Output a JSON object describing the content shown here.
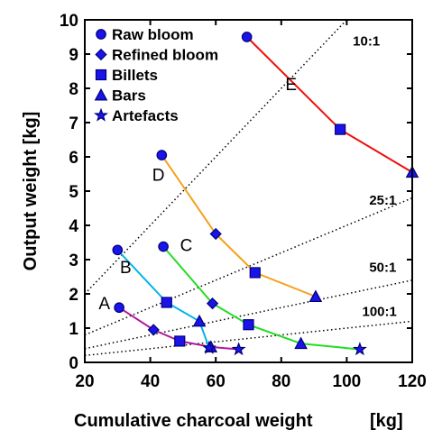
{
  "chart_data": {
    "type": "line",
    "xlabel": "Cumulative charcoal weight",
    "xunit": "[kg]",
    "ylabel": "Output weight [kg]",
    "xlim": [
      20,
      120
    ],
    "ylim": [
      0,
      10
    ],
    "xticks": [
      20,
      40,
      60,
      80,
      100,
      120
    ],
    "yticks": [
      0,
      1,
      2,
      3,
      4,
      5,
      6,
      7,
      8,
      9,
      10
    ],
    "grid": false,
    "legend_position": "top-left",
    "legend": [
      {
        "label": "Raw bloom",
        "marker": "circle"
      },
      {
        "label": "Refined bloom",
        "marker": "diamond"
      },
      {
        "label": "Billets",
        "marker": "square"
      },
      {
        "label": "Bars",
        "marker": "triangle"
      },
      {
        "label": "Artefacts",
        "marker": "star"
      }
    ],
    "ratio_lines": [
      {
        "label": "10:1",
        "slope": 0.1
      },
      {
        "label": "25:1",
        "slope": 0.04
      },
      {
        "label": "50:1",
        "slope": 0.02
      },
      {
        "label": "100:1",
        "slope": 0.01
      }
    ],
    "series": [
      {
        "name": "A",
        "color": "#b0189c",
        "points": [
          {
            "x": 30.5,
            "y": 1.6,
            "marker": "circle"
          },
          {
            "x": 41,
            "y": 0.95,
            "marker": "diamond"
          },
          {
            "x": 49,
            "y": 0.62,
            "marker": "square"
          },
          {
            "x": 58.5,
            "y": 0.45,
            "marker": "triangle"
          },
          {
            "x": 67,
            "y": 0.38,
            "marker": "star"
          }
        ]
      },
      {
        "name": "B",
        "color": "#00b4ee",
        "points": [
          {
            "x": 30,
            "y": 3.28,
            "marker": "circle"
          },
          {
            "x": 45,
            "y": 1.75,
            "marker": "square"
          },
          {
            "x": 55,
            "y": 1.2,
            "marker": "triangle"
          },
          {
            "x": 58,
            "y": 0.42,
            "marker": "star"
          }
        ]
      },
      {
        "name": "C",
        "color": "#22dd22",
        "points": [
          {
            "x": 44,
            "y": 3.38,
            "marker": "circle"
          },
          {
            "x": 59,
            "y": 1.72,
            "marker": "diamond"
          },
          {
            "x": 70,
            "y": 1.1,
            "marker": "square"
          },
          {
            "x": 86,
            "y": 0.55,
            "marker": "triangle"
          },
          {
            "x": 104,
            "y": 0.38,
            "marker": "star"
          }
        ]
      },
      {
        "name": "D",
        "color": "#f5a11c",
        "points": [
          {
            "x": 43.5,
            "y": 6.05,
            "marker": "circle"
          },
          {
            "x": 60,
            "y": 3.75,
            "marker": "diamond"
          },
          {
            "x": 72,
            "y": 2.62,
            "marker": "square"
          },
          {
            "x": 90.5,
            "y": 1.92,
            "marker": "triangle"
          }
        ]
      },
      {
        "name": "E",
        "color": "#ee1111",
        "points": [
          {
            "x": 69.5,
            "y": 9.5,
            "marker": "circle"
          },
          {
            "x": 98,
            "y": 6.8,
            "marker": "square"
          },
          {
            "x": 120,
            "y": 5.55,
            "marker": "triangle"
          }
        ]
      }
    ]
  }
}
